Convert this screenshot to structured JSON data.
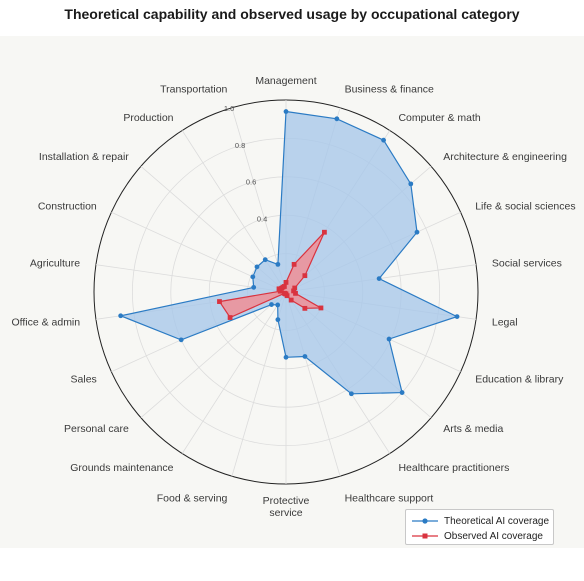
{
  "chart_data": {
    "type": "radar",
    "title": "Theoretical capability and observed usage by occupational category",
    "categories": [
      "Management",
      "Business & finance",
      "Computer & math",
      "Architecture & engineering",
      "Life & social sciences",
      "Social services",
      "Legal",
      "Education & library",
      "Arts & media",
      "Healthcare practitioners",
      "Healthcare support",
      "Protective\nservice",
      "Food & serving",
      "Grounds maintenance",
      "Personal care",
      "Sales",
      "Office & admin",
      "Agriculture",
      "Construction",
      "Installation & repair",
      "Production",
      "Transportation"
    ],
    "radial_ticks": [
      0.4,
      0.6,
      0.8,
      1.0
    ],
    "rlim": [
      0,
      1.0
    ],
    "grid": true,
    "legend_position": "bottom-right",
    "series": [
      {
        "name": "Theoretical AI coverage",
        "color": "#2b7bc4",
        "fill": "#a9c8ea",
        "marker": "circle",
        "values": [
          0.94,
          0.94,
          0.94,
          0.86,
          0.75,
          0.49,
          0.9,
          0.59,
          0.8,
          0.63,
          0.35,
          0.34,
          0.15,
          0.08,
          0.1,
          0.6,
          0.87,
          0.17,
          0.19,
          0.2,
          0.2,
          0.15
        ]
      },
      {
        "name": "Observed AI coverage",
        "color": "#d9333f",
        "fill": "#ee8f96",
        "marker": "square",
        "values": [
          0.05,
          0.15,
          0.37,
          0.13,
          0.05,
          0.04,
          0.05,
          0.2,
          0.13,
          0.05,
          0.02,
          0.01,
          0.01,
          0.01,
          0.01,
          0.32,
          0.35,
          0.03,
          0.04,
          0.03,
          0.03,
          0.03
        ]
      }
    ]
  }
}
